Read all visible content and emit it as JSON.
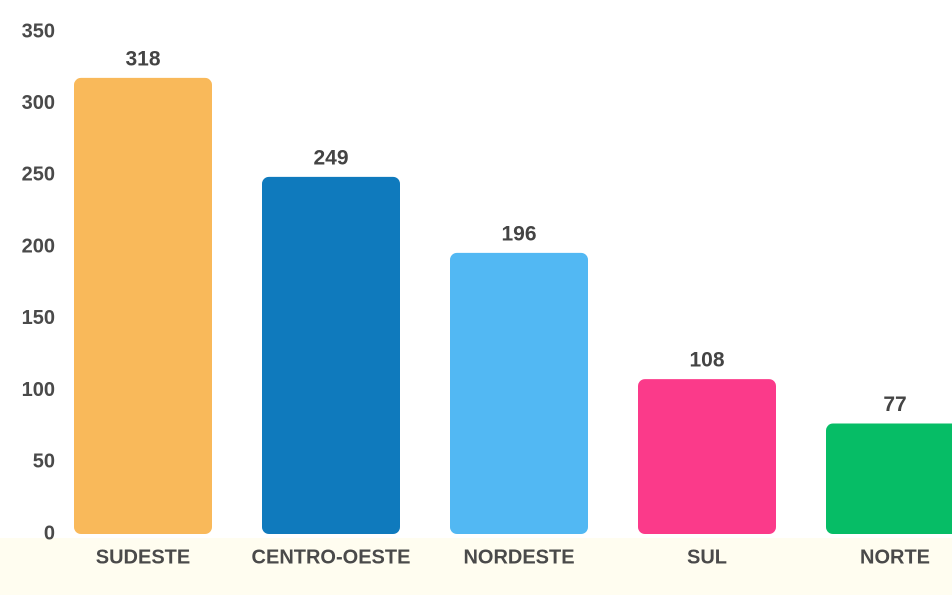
{
  "chart_data": {
    "type": "bar",
    "categories": [
      "SUDESTE",
      "CENTRO-OESTE",
      "NORDESTE",
      "SUL",
      "NORTE"
    ],
    "values": [
      318,
      249,
      196,
      108,
      77
    ],
    "colors": [
      "#f9b95a",
      "#0f7abd",
      "#52b8f3",
      "#fb3a8a",
      "#06bd66"
    ],
    "ylim": [
      0,
      350
    ],
    "yticks": [
      0,
      50,
      100,
      150,
      200,
      250,
      300,
      350
    ],
    "grid": false
  }
}
